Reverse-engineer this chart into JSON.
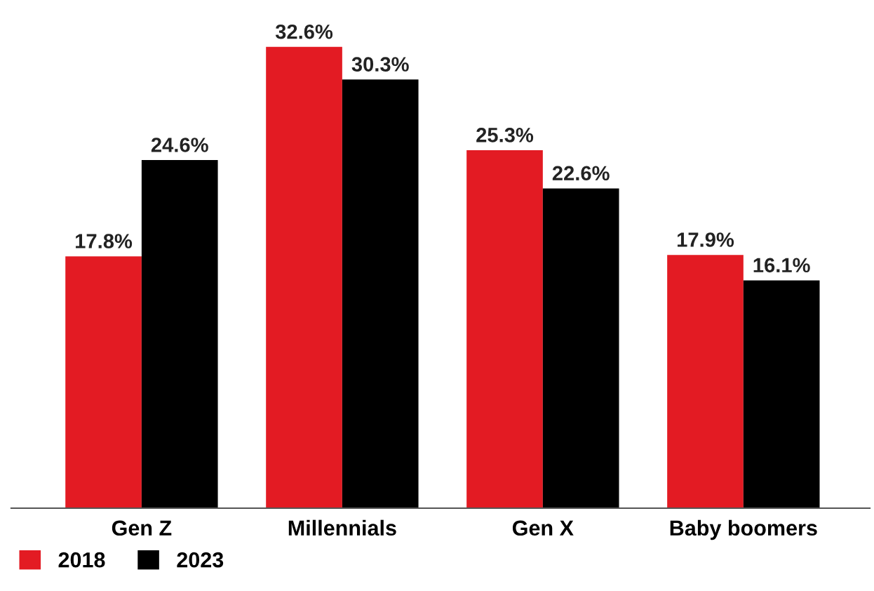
{
  "chart_data": {
    "type": "bar",
    "categories": [
      "Gen Z",
      "Millennials",
      "Gen X",
      "Baby boomers"
    ],
    "series": [
      {
        "name": "2018",
        "color": "#e31b23",
        "values": [
          17.8,
          32.6,
          25.3,
          17.9
        ],
        "value_labels": [
          "17.8%",
          "32.6%",
          "25.3%",
          "17.9%"
        ]
      },
      {
        "name": "2023",
        "color": "#000000",
        "values": [
          24.6,
          30.3,
          22.6,
          16.1
        ],
        "value_labels": [
          "24.6%",
          "30.3%",
          "22.6%",
          "16.1%"
        ]
      }
    ],
    "grid": false,
    "legend": "bottom left"
  }
}
